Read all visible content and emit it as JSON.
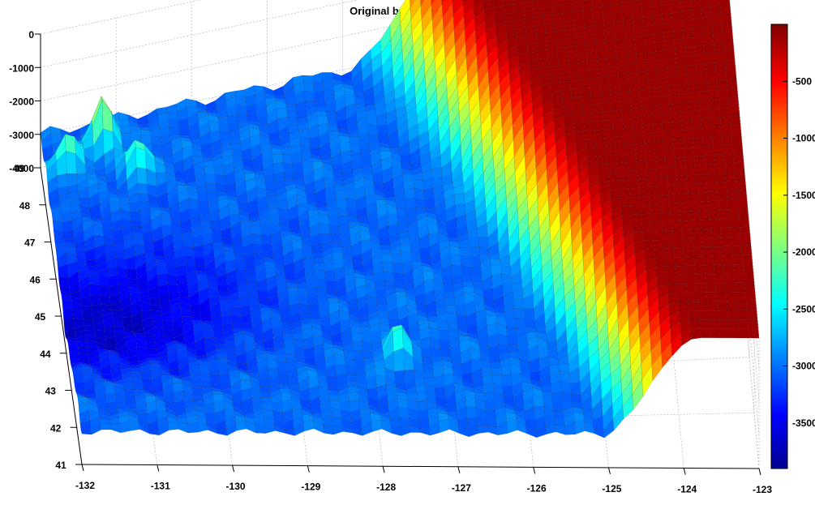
{
  "chart_data": {
    "type": "surface",
    "title": "Original bathymetry",
    "xlabel": "",
    "ylabel": "",
    "zlabel": "",
    "colormap": "jet",
    "grid": true,
    "x_ticks": [
      -132,
      -131,
      -130,
      -129,
      -128,
      -127,
      -126,
      -125,
      -124,
      -123
    ],
    "y_ticks": [
      41,
      42,
      43,
      44,
      45,
      46,
      47,
      48,
      49
    ],
    "z_ticks": [
      0,
      -1000,
      -2000,
      -3000,
      -4000
    ],
    "xlim": [
      -132,
      -123
    ],
    "ylim": [
      41,
      49
    ],
    "zlim": [
      -4000,
      0
    ],
    "colorbar_ticks": [
      -500,
      -1000,
      -1500,
      -2000,
      -2500,
      -3000,
      -3500
    ],
    "colorbar_range": [
      -3900,
      0
    ],
    "features": {
      "shelf_depth": -100,
      "shelf_west_edge_lon": -125.2,
      "abyssal_plain_depth": -3000,
      "deep_basin_depth": -3600,
      "peak_seamounts": [
        {
          "lon": -131.2,
          "lat": 48.4,
          "depth": -1500
        },
        {
          "lon": -131.7,
          "lat": 48.0,
          "depth": -1900
        },
        {
          "lon": -130.8,
          "lat": 47.6,
          "depth": -2000
        },
        {
          "lon": -127.7,
          "lat": 42.7,
          "depth": -2200
        }
      ]
    }
  }
}
